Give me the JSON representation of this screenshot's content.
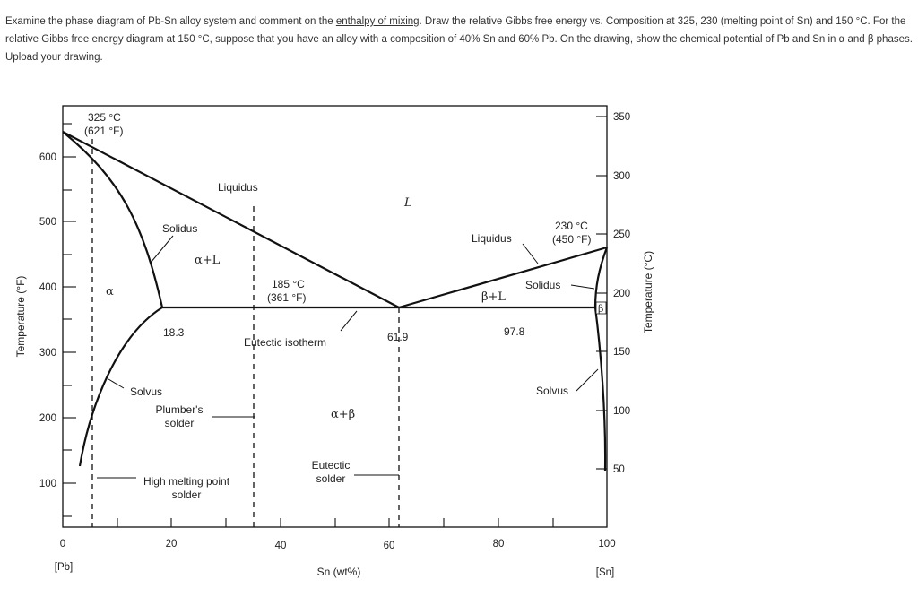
{
  "question": {
    "part1": "Examine the phase diagram of Pb-Sn alloy system and comment on the ",
    "link": "enthalpy of mixing",
    "part2": ". Draw the relative Gibbs free energy vs. Composition at 325, 230 (melting point of Sn) and 150 °C. For the relative Gibbs free energy diagram at 150 °C, suppose that you have an alloy with a composition of 40% Sn and 60% Pb. On the drawing, show the chemical potential of Pb and Sn in α and β phases. Upload your drawing."
  },
  "diagram": {
    "x_axis_label": "Sn (wt%)",
    "x_ticks": [
      "0",
      "20",
      "40",
      "60",
      "80",
      "100"
    ],
    "x_left_end": "[Pb]",
    "x_right_end": "[Sn]",
    "y_left_label": "Temperature (°F)",
    "y_left_ticks": [
      "600",
      "500",
      "400",
      "300",
      "200",
      "100"
    ],
    "y_right_label": "Temperature (°C)",
    "y_right_ticks": [
      "350",
      "300",
      "250",
      "200",
      "150",
      "100",
      "50"
    ],
    "pb_melt_c": "325 °C",
    "pb_melt_f": "(621 °F)",
    "sn_melt_c": "230 °C",
    "sn_melt_f": "(450 °F)",
    "eutectic_c": "185 °C",
    "eutectic_f": "(361 °F)",
    "liquidus_left": "Liquidus",
    "liquidus_right": "Liquidus",
    "solidus_left": "Solidus",
    "solidus_right": "Solidus",
    "solvus_left": "Solvus",
    "solvus_right": "Solvus",
    "eutectic_isotherm": "Eutectic isotherm",
    "comp_alpha": "18.3",
    "comp_eutectic": "61.9",
    "comp_beta": "97.8",
    "region_liquid": "L",
    "region_alpha": "α",
    "region_beta": "β",
    "region_alpha_l": "α+L",
    "region_beta_l": "β+L",
    "region_alpha_beta": "α+β",
    "plumbers_line1": "Plumber's",
    "plumbers_line2": "solder",
    "high_melt_line1": "High melting point",
    "high_melt_line2": "solder",
    "eutectic_solder_line1": "Eutectic",
    "eutectic_solder_line2": "solder"
  }
}
